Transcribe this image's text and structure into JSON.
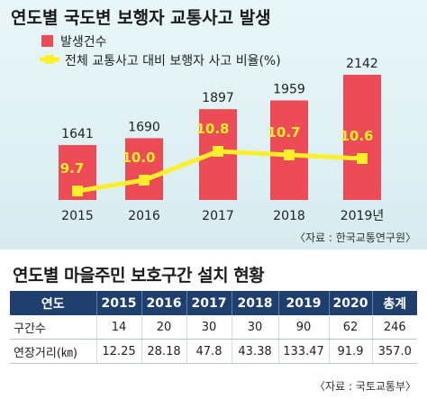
{
  "chart_data": {
    "type": "bar",
    "title": "연도별 국도변 보행자 교통사고 발생",
    "categories": [
      "2015",
      "2016",
      "2017",
      "2018",
      "2019년"
    ],
    "series": [
      {
        "name": "발생건수",
        "kind": "bar",
        "color": "#ec4b57",
        "values": [
          1641,
          1690,
          1897,
          1959,
          2142
        ]
      },
      {
        "name": "전체 교통사고 대비 보행자 사고 비율(%)",
        "kind": "line",
        "color": "#ffef2a",
        "values": [
          9.7,
          10.0,
          10.8,
          10.7,
          10.6
        ]
      }
    ],
    "bar_labels": [
      "1641",
      "1690",
      "1897",
      "1959",
      "2142"
    ],
    "line_labels": [
      "9.7",
      "10.0",
      "10.8",
      "10.7",
      "10.6"
    ],
    "source": "〈자료 : 한국교통연구원〉",
    "legend_position": "top-left",
    "grid": false
  },
  "table": {
    "title": "연도별 마을주민 보호구간 설치 현황",
    "headers": [
      "연도",
      "2015",
      "2016",
      "2017",
      "2018",
      "2019",
      "2020",
      "총계"
    ],
    "rows": [
      [
        "구간수",
        "14",
        "20",
        "30",
        "30",
        "90",
        "62",
        "246"
      ],
      [
        "연장거리(㎞)",
        "12.25",
        "28.18",
        "47.8",
        "43.38",
        "133.47",
        "91.9",
        "357.0"
      ]
    ],
    "source": "〈자료 : 국토교통부〉"
  }
}
